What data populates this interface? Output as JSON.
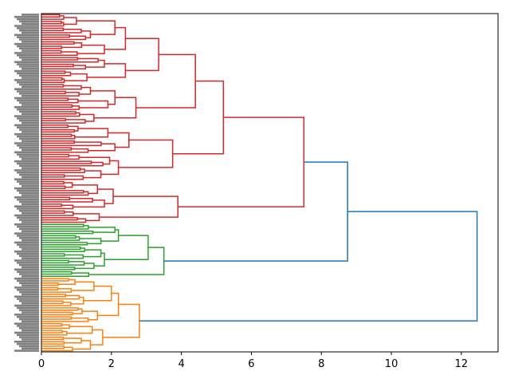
{
  "chart_data": {
    "type": "dendrogram",
    "orientation": "right",
    "title": "",
    "xlabel": "",
    "ylabel": "",
    "xlim": [
      0,
      13.05
    ],
    "x_ticks": [
      "0",
      "2",
      "4",
      "6",
      "8",
      "10",
      "12"
    ],
    "x_tick_values": [
      0,
      2,
      4,
      6,
      8,
      10,
      12
    ],
    "grid": false,
    "leaf_count": 150,
    "leaf_labels_legible": false,
    "colors": {
      "above_threshold": "#1f77b4",
      "red": "#d62728",
      "green": "#2ca02c",
      "orange": "#ff7f0e"
    },
    "tree": {
      "h": 12.45,
      "color": "above_threshold",
      "children": [
        {
          "h": 8.75,
          "color": "above_threshold",
          "children": [
            {
              "h": 7.5,
              "color": "red",
              "children": [
                {
                  "h": 5.2,
                  "children": [
                    {
                      "h": 4.4,
                      "children": [
                        {
                          "h": 3.35,
                          "children": [
                            {
                              "h": 2.4,
                              "children": [
                                {
                                  "h": 2.1,
                                  "children": [
                                    {
                                      "n": 6,
                                      "h": 1.0
                                    },
                                    {
                                      "n": 6,
                                      "h": 1.4
                                    }
                                  ]
                                },
                                {
                                  "n": 7,
                                  "h": 1.8
                                }
                              ]
                            },
                            {
                              "h": 2.4,
                              "children": [
                                {
                                  "n": 6,
                                  "h": 1.8
                                },
                                {
                                  "n": 6,
                                  "h": 1.3
                                }
                              ]
                            }
                          ]
                        },
                        {
                          "h": 2.7,
                          "children": [
                            {
                              "h": 2.1,
                              "children": [
                                {
                                  "n": 6,
                                  "h": 1.4
                                },
                                {
                                  "n": 6,
                                  "h": 1.9
                                }
                              ]
                            },
                            {
                              "n": 6,
                              "h": 1.5
                            }
                          ]
                        }
                      ]
                    },
                    {
                      "h": 3.75,
                      "children": [
                        {
                          "h": 2.5,
                          "children": [
                            {
                              "n": 7,
                              "h": 1.9
                            },
                            {
                              "n": 6,
                              "h": 2.1
                            }
                          ]
                        },
                        {
                          "h": 2.2,
                          "children": [
                            {
                              "n": 6,
                              "h": 1.95
                            },
                            {
                              "n": 6,
                              "h": 1.7
                            }
                          ]
                        }
                      ]
                    }
                  ]
                },
                {
                  "h": 3.9,
                  "children": [
                    {
                      "h": 2.05,
                      "children": [
                        {
                          "n": 7,
                          "h": 1.6
                        },
                        {
                          "n": 6,
                          "h": 1.8
                        }
                      ]
                    },
                    {
                      "n": 6,
                      "h": 1.65
                    }
                  ]
                }
              ]
            },
            {
              "h": 3.5,
              "color": "green",
              "children": [
                {
                  "h": 3.05,
                  "children": [
                    {
                      "h": 2.2,
                      "children": [
                        {
                          "n": 5,
                          "h": 2.1
                        },
                        {
                          "n": 5,
                          "h": 1.7
                        }
                      ]
                    },
                    {
                      "h": 1.8,
                      "children": [
                        {
                          "n": 6,
                          "h": 1.7
                        },
                        {
                          "n": 5,
                          "h": 1.5
                        }
                      ]
                    }
                  ]
                },
                {
                  "n": 3,
                  "h": 1.35
                }
              ]
            }
          ]
        },
        {
          "h": 2.8,
          "color": "orange",
          "children": [
            {
              "h": 2.2,
              "children": [
                {
                  "h": 2.0,
                  "children": [
                    {
                      "n": 7,
                      "h": 1.5
                    },
                    {
                      "n": 6,
                      "h": 1.2
                    }
                  ]
                },
                {
                  "n": 7,
                  "h": 1.6
                }
              ]
            },
            {
              "h": 1.75,
              "children": [
                {
                  "n": 6,
                  "h": 1.45
                },
                {
                  "n": 7,
                  "h": 1.4
                }
              ]
            }
          ]
        }
      ]
    }
  }
}
